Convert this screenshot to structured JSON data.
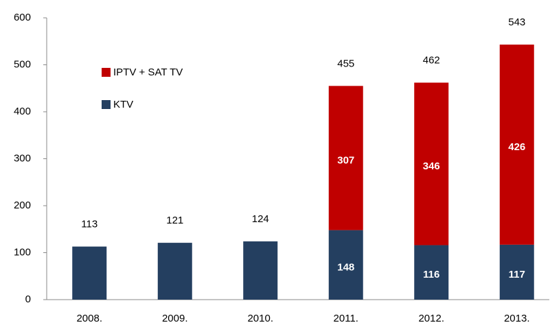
{
  "chart_data": {
    "type": "stacked-bar",
    "categories": [
      "2008.",
      "2009.",
      "2010.",
      "2011.",
      "2012.",
      "2013."
    ],
    "series": [
      {
        "name": "KTV",
        "color": "#243f60",
        "values": [
          113,
          121,
          124,
          148,
          116,
          117
        ]
      },
      {
        "name": "IPTV + SAT TV",
        "color": "#c00000",
        "values": [
          null,
          null,
          null,
          307,
          346,
          426
        ]
      }
    ],
    "totals": [
      113,
      121,
      124,
      455,
      462,
      543
    ],
    "ylim": [
      0,
      600
    ],
    "yticks": [
      0,
      100,
      200,
      300,
      400,
      500,
      600
    ],
    "grid": false,
    "legend": "top-left"
  }
}
